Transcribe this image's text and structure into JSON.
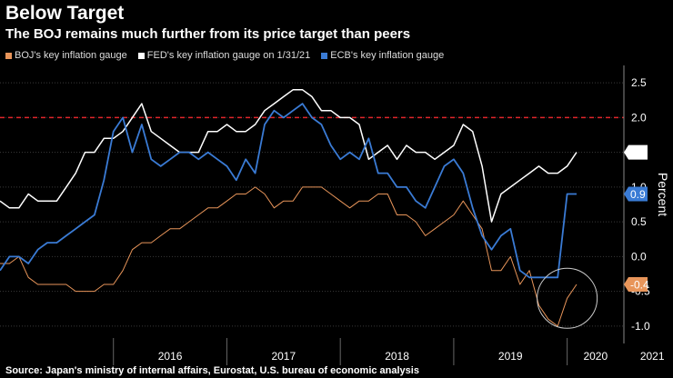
{
  "header": {
    "title": "Below Target",
    "subtitle": "The BOJ remains much further from its price target than peers"
  },
  "source": "Source: Japan's ministry of internal affairs, Eurostat, U.S. bureau of economic analysis",
  "colors": {
    "boj": "#e8955a",
    "fed": "#ffffff",
    "ecb": "#3a7bd5",
    "target": "#e0262b",
    "grid": "#3a3a3a"
  },
  "chart_data": {
    "type": "line",
    "ylabel": "Percent",
    "ylim": [
      -1.25,
      2.75
    ],
    "yticks": [
      "2.5",
      "2.0",
      "1.5",
      "1.0",
      "0.5",
      "0.0",
      "-0.5",
      "-1.0"
    ],
    "year_labels": [
      "2016",
      "2017",
      "2018",
      "2019",
      "2020",
      "2021"
    ],
    "x_start": "2015-01",
    "x_end": "2021-06",
    "target_line": 2.0,
    "annotation": "circle around recent BOJ reading (late 2020 - early 2021)",
    "series": [
      {
        "key": "boj",
        "name": "BOJ's key inflation gauge",
        "end_label": "-0.4",
        "values": [
          -0.1,
          -0.1,
          0.0,
          -0.3,
          -0.4,
          -0.4,
          -0.4,
          -0.4,
          -0.5,
          -0.5,
          -0.5,
          -0.4,
          -0.4,
          -0.2,
          0.1,
          0.2,
          0.2,
          0.3,
          0.4,
          0.4,
          0.5,
          0.6,
          0.7,
          0.7,
          0.8,
          0.9,
          0.9,
          1.0,
          0.9,
          0.7,
          0.8,
          0.8,
          1.0,
          1.0,
          1.0,
          0.9,
          0.8,
          0.7,
          0.8,
          0.8,
          0.9,
          0.9,
          0.6,
          0.6,
          0.5,
          0.3,
          0.4,
          0.5,
          0.6,
          0.8,
          0.6,
          0.4,
          -0.2,
          -0.2,
          0.0,
          -0.4,
          -0.2,
          -0.7,
          -0.9,
          -1.0,
          -0.6,
          -0.4
        ]
      },
      {
        "key": "fed",
        "name": "FED's key inflation gauge on 1/31/21",
        "end_label": "1.5",
        "values": [
          0.8,
          0.7,
          0.7,
          0.9,
          0.8,
          0.8,
          0.8,
          1.0,
          1.2,
          1.5,
          1.5,
          1.7,
          1.7,
          1.8,
          2.0,
          2.2,
          1.8,
          1.7,
          1.6,
          1.5,
          1.5,
          1.5,
          1.8,
          1.8,
          1.9,
          1.8,
          1.8,
          1.9,
          2.1,
          2.2,
          2.3,
          2.4,
          2.4,
          2.3,
          2.1,
          2.1,
          2.0,
          2.0,
          1.9,
          1.4,
          1.5,
          1.6,
          1.4,
          1.6,
          1.5,
          1.5,
          1.4,
          1.5,
          1.6,
          1.9,
          1.8,
          1.3,
          0.5,
          0.9,
          1.0,
          1.1,
          1.2,
          1.3,
          1.2,
          1.2,
          1.3,
          1.5
        ]
      },
      {
        "key": "ecb",
        "name": "ECB's key inflation gauge",
        "end_label": "0.9",
        "values": [
          -0.2,
          0.0,
          0.0,
          -0.1,
          0.1,
          0.2,
          0.2,
          0.3,
          0.4,
          0.5,
          0.6,
          1.1,
          1.8,
          2.0,
          1.5,
          1.9,
          1.4,
          1.3,
          1.4,
          1.5,
          1.5,
          1.4,
          1.5,
          1.4,
          1.3,
          1.1,
          1.4,
          1.2,
          1.9,
          2.1,
          2.0,
          2.1,
          2.2,
          2.0,
          1.9,
          1.6,
          1.4,
          1.5,
          1.4,
          1.7,
          1.2,
          1.2,
          1.0,
          1.0,
          0.8,
          0.7,
          1.0,
          1.3,
          1.4,
          1.2,
          0.7,
          0.3,
          0.1,
          0.3,
          0.4,
          -0.2,
          -0.3,
          -0.3,
          -0.3,
          -0.3,
          0.9,
          0.9
        ]
      }
    ]
  }
}
